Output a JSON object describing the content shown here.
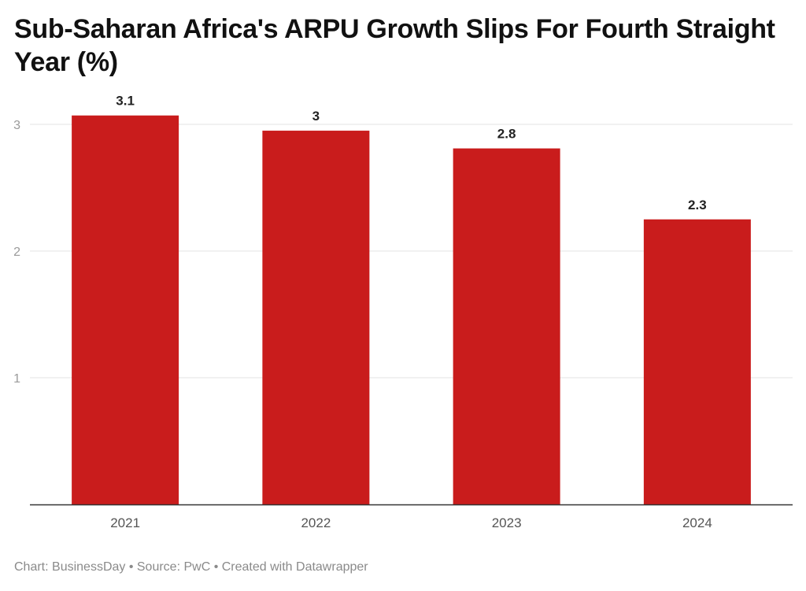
{
  "title": "Sub-Saharan Africa's ARPU Growth Slips For Fourth Straight Year (%)",
  "footer": "Chart: BusinessDay • Source: PwC • Created with Datawrapper",
  "chart_data": {
    "type": "bar",
    "title": "Sub-Saharan Africa's ARPU Growth Slips For Fourth Straight Year (%)",
    "categories": [
      "2021",
      "2022",
      "2023",
      "2024"
    ],
    "values": [
      3.07,
      2.95,
      2.81,
      2.25
    ],
    "data_labels": [
      "3.1",
      "3",
      "2.8",
      "2.3"
    ],
    "xlabel": "",
    "ylabel": "",
    "ylim": [
      0,
      3
    ],
    "yticks": [
      1,
      2,
      3
    ],
    "grid": true,
    "bar_color": "#c91c1c"
  }
}
